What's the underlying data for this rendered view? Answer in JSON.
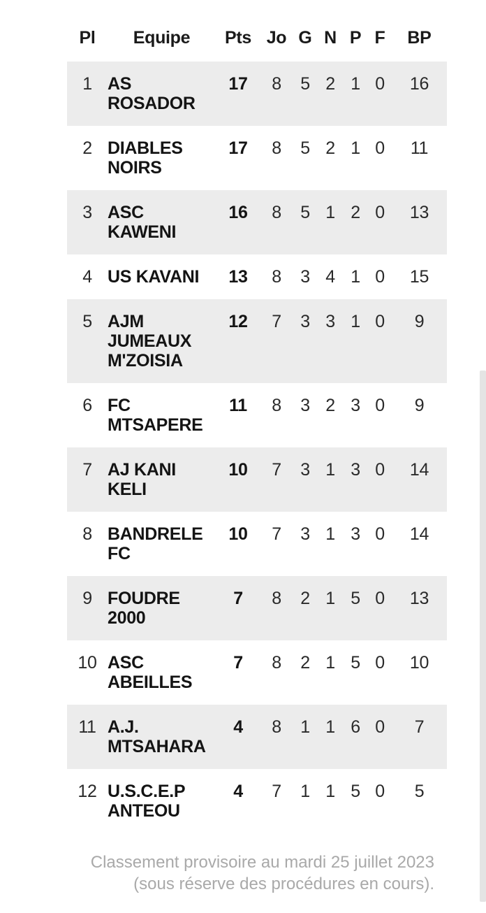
{
  "table": {
    "columns": [
      "Pl",
      "Equipe",
      "Pts",
      "Jo",
      "G",
      "N",
      "P",
      "F",
      "BP"
    ],
    "rows": [
      {
        "place": "1",
        "team_lines": [
          "AS",
          "ROSADOR"
        ],
        "pts": "17",
        "jo": "8",
        "g": "5",
        "n": "2",
        "p": "1",
        "f": "0",
        "bp": "16"
      },
      {
        "place": "2",
        "team_lines": [
          "DIABLES",
          "NOIRS"
        ],
        "pts": "17",
        "jo": "8",
        "g": "5",
        "n": "2",
        "p": "1",
        "f": "0",
        "bp": "11"
      },
      {
        "place": "3",
        "team_lines": [
          "ASC",
          "KAWENI"
        ],
        "pts": "16",
        "jo": "8",
        "g": "5",
        "n": "1",
        "p": "2",
        "f": "0",
        "bp": "13"
      },
      {
        "place": "4",
        "team_lines": [
          "US KAVANI"
        ],
        "pts": "13",
        "jo": "8",
        "g": "3",
        "n": "4",
        "p": "1",
        "f": "0",
        "bp": "15"
      },
      {
        "place": "5",
        "team_lines": [
          "AJM",
          "JUMEAUX",
          "M'ZOISIA"
        ],
        "pts": "12",
        "jo": "7",
        "g": "3",
        "n": "3",
        "p": "1",
        "f": "0",
        "bp": "9"
      },
      {
        "place": "6",
        "team_lines": [
          "FC",
          "MTSAPERE"
        ],
        "pts": "11",
        "jo": "8",
        "g": "3",
        "n": "2",
        "p": "3",
        "f": "0",
        "bp": "9"
      },
      {
        "place": "7",
        "team_lines": [
          "AJ KANI",
          "KELI"
        ],
        "pts": "10",
        "jo": "7",
        "g": "3",
        "n": "1",
        "p": "3",
        "f": "0",
        "bp": "14"
      },
      {
        "place": "8",
        "team_lines": [
          "BANDRELE",
          "FC"
        ],
        "pts": "10",
        "jo": "7",
        "g": "3",
        "n": "1",
        "p": "3",
        "f": "0",
        "bp": "14"
      },
      {
        "place": "9",
        "team_lines": [
          "FOUDRE",
          "2000"
        ],
        "pts": "7",
        "jo": "8",
        "g": "2",
        "n": "1",
        "p": "5",
        "f": "0",
        "bp": "13"
      },
      {
        "place": "10",
        "team_lines": [
          "ASC",
          "ABEILLES"
        ],
        "pts": "7",
        "jo": "8",
        "g": "2",
        "n": "1",
        "p": "5",
        "f": "0",
        "bp": "10"
      },
      {
        "place": "11",
        "team_lines": [
          "A.J.",
          "MTSAHARA"
        ],
        "pts": "4",
        "jo": "8",
        "g": "1",
        "n": "1",
        "p": "6",
        "f": "0",
        "bp": "7"
      },
      {
        "place": "12",
        "team_lines": [
          "U.S.C.E.P",
          "ANTEOU"
        ],
        "pts": "4",
        "jo": "7",
        "g": "1",
        "n": "1",
        "p": "5",
        "f": "0",
        "bp": "5"
      }
    ]
  },
  "footer": {
    "line1": "Classement provisoire au mardi 25 juillet 2023",
    "line2": "(sous réserve des procédures en cours)."
  },
  "colors": {
    "row_stripe": "#ececec",
    "text_primary": "#141414",
    "text_secondary": "#2a2a2a",
    "footer_text": "#a9a9a9",
    "scrollbar": "#e4e4e4"
  }
}
